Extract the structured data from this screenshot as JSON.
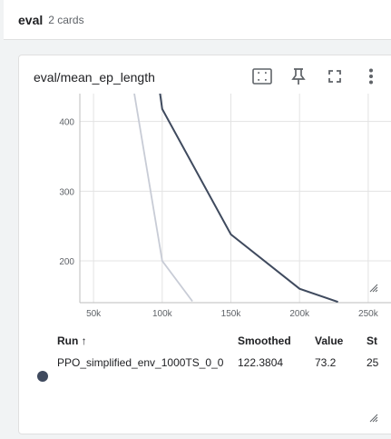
{
  "group": {
    "title": "eval",
    "count": "2 cards"
  },
  "card": {
    "title": "eval/mean_ep_length",
    "toolbar": [
      {
        "name": "fit-domain-icon"
      },
      {
        "name": "pin-icon"
      },
      {
        "name": "fullscreen-icon"
      },
      {
        "name": "more-vert-icon"
      }
    ]
  },
  "table": {
    "headers": {
      "run": "Run ↑",
      "smoothed": "Smoothed",
      "value": "Value",
      "step": "St"
    },
    "rows": [
      {
        "run": "PPO_simplified_env_1000TS_0_0",
        "smoothed": "122.3804",
        "value": "73.2",
        "step": "25",
        "color": "#3f4a5e"
      }
    ]
  },
  "chart_data": {
    "type": "line",
    "title": "",
    "xlabel": "",
    "ylabel": "",
    "xlim": [
      40000,
      260000
    ],
    "ylim": [
      140,
      440
    ],
    "x_ticks": [
      50000,
      100000,
      150000,
      200000,
      250000
    ],
    "x_tick_labels": [
      "50k",
      "100k",
      "150k",
      "200k",
      "250k"
    ],
    "y_ticks": [
      200,
      300,
      400
    ],
    "y_tick_labels": [
      "200",
      "300",
      "400"
    ],
    "grid": true,
    "series": [
      {
        "role": "raw",
        "color": "#c8ccd6",
        "points": [
          [
            78000,
            460
          ],
          [
            100000,
            200
          ],
          [
            122000,
            142
          ]
        ]
      },
      {
        "role": "smoothed",
        "color": "#3f4a5e",
        "points": [
          [
            97000,
            460
          ],
          [
            100000,
            418
          ],
          [
            150000,
            238
          ],
          [
            200000,
            160
          ],
          [
            228000,
            141
          ]
        ]
      }
    ]
  }
}
